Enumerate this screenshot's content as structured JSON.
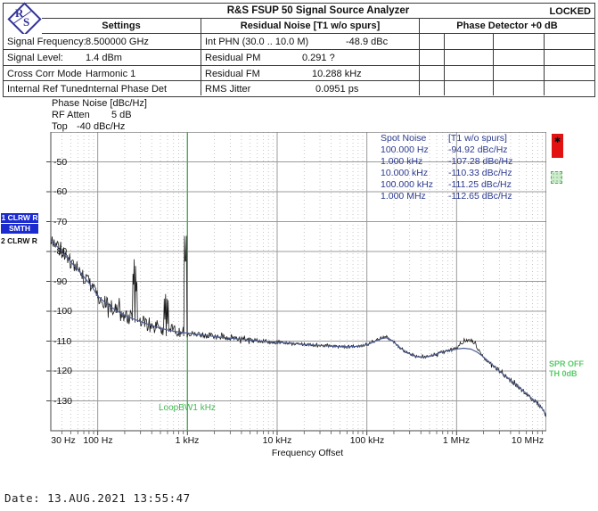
{
  "header": {
    "title": "R&S FSUP 50 Signal Source Analyzer",
    "status": "LOCKED",
    "logo_letters": {
      "r": "R",
      "s": "S"
    }
  },
  "tables": {
    "settings": {
      "header": "Settings",
      "rows": [
        {
          "label": "Signal Frequency:",
          "value": "8.500000 GHz"
        },
        {
          "label": "Signal Level:",
          "value": "1.4 dBm"
        },
        {
          "label": "Cross Corr Mode",
          "value": "Harmonic 1"
        },
        {
          "label": "Internal Ref Tuned",
          "value": "Internal Phase Det"
        }
      ]
    },
    "residual": {
      "header": "Residual Noise [T1 w/o spurs]",
      "rows": [
        {
          "label": "Int PHN (30.0 .. 10.0 M)",
          "value": "-48.9 dBc"
        },
        {
          "label": "Residual PM",
          "value": "0.291 ?"
        },
        {
          "label": "Residual FM",
          "value": "10.288 kHz"
        },
        {
          "label": "RMS Jitter",
          "value": "0.0951 ps"
        }
      ]
    },
    "phase_detector": {
      "header": "Phase Detector +0 dB",
      "rows": 4,
      "cols": 4
    }
  },
  "info": {
    "heading": "Phase Noise [dBc/Hz]",
    "atten_label": "RF Atten",
    "atten_value": "5 dB",
    "top_label": "Top",
    "top_value": "-40 dBc/Hz"
  },
  "trace_legend": {
    "badge1": "1 CLRW R",
    "badge2": "SMTH 20%",
    "badge3": "2 CLRW R"
  },
  "side_labels": {
    "spur": "SPR OFF",
    "threshold": "TH 0dB",
    "marker1": "✱"
  },
  "footer": {
    "date": "Date: 13.AUG.2021  13:55:47"
  },
  "chart_data": {
    "type": "line",
    "title": "Phase Noise [dBc/Hz]",
    "xlabel": "Frequency Offset",
    "ylabel": "Phase Noise [dBc/Hz]",
    "x_axis": {
      "scale": "log",
      "min_hz": 30,
      "max_hz": 10000000,
      "tick_hz": [
        30,
        100,
        1000,
        10000,
        100000,
        1000000,
        10000000
      ],
      "tick_labels": [
        "30 Hz",
        "100 Hz",
        "1 kHz",
        "10 kHz",
        "100 kHz",
        "1 MHz",
        "10 MHz"
      ]
    },
    "y_axis": {
      "top_db": -40,
      "bottom_db": -140,
      "tick_db": [
        -50,
        -60,
        -70,
        -80,
        -90,
        -100,
        -110,
        -120,
        -130
      ],
      "tick_labels": [
        "-50",
        "-60",
        "-70",
        "-80",
        "-90",
        "-100",
        "-110",
        "-120",
        "-130"
      ]
    },
    "annotations": {
      "loop_bw": {
        "f_hz": 1000,
        "label": "LoopBW1 kHz",
        "color": "#3cb24c"
      }
    },
    "spot_noise": {
      "rows": [
        [
          "Spot Noise",
          "[T1 w/o spurs]"
        ],
        [
          "100.000 Hz",
          "-94.92 dBc/Hz"
        ],
        [
          "1.000 kHz",
          "-107.28 dBc/Hz"
        ],
        [
          "10.000 kHz",
          "-110.33 dBc/Hz"
        ],
        [
          "100.000 kHz",
          "-111.25 dBc/Hz"
        ],
        [
          "1.000 MHz",
          "-112.65 dBc/Hz"
        ]
      ]
    },
    "series": [
      {
        "name": "Trace 1 CLRW",
        "color": "#1a1a1a",
        "noisy": true,
        "points": [
          [
            30,
            -75.5
          ],
          [
            36,
            -78.6
          ],
          [
            43,
            -81.2
          ],
          [
            52,
            -84
          ],
          [
            62,
            -86.6
          ],
          [
            74,
            -89.3
          ],
          [
            88,
            -92.2
          ],
          [
            100,
            -94.9
          ],
          [
            115,
            -96.5
          ],
          [
            135,
            -98.2
          ],
          [
            160,
            -99.7
          ],
          [
            200,
            -101.4
          ],
          [
            250,
            -102.6
          ],
          [
            320,
            -103.8
          ],
          [
            400,
            -104.8
          ],
          [
            520,
            -105.8
          ],
          [
            650,
            -106.5
          ],
          [
            800,
            -107
          ],
          [
            1000,
            -107.3
          ],
          [
            1300,
            -107.8
          ],
          [
            1700,
            -108.2
          ],
          [
            2200,
            -108.6
          ],
          [
            3000,
            -109
          ],
          [
            4000,
            -109.4
          ],
          [
            5500,
            -109.8
          ],
          [
            7500,
            -110.1
          ],
          [
            10000,
            -110.33
          ],
          [
            14000,
            -110.7
          ],
          [
            20000,
            -111.1
          ],
          [
            28000,
            -111.4
          ],
          [
            40000,
            -111.7
          ],
          [
            55000,
            -111.9
          ],
          [
            75000,
            -111.8
          ],
          [
            100000,
            -111.25
          ],
          [
            120000,
            -110.2
          ],
          [
            145000,
            -108.9
          ],
          [
            165000,
            -108.6
          ],
          [
            190000,
            -109.8
          ],
          [
            230000,
            -112
          ],
          [
            280000,
            -113.9
          ],
          [
            350000,
            -115.1
          ],
          [
            430000,
            -115.5
          ],
          [
            520000,
            -114.9
          ],
          [
            650000,
            -113.9
          ],
          [
            800000,
            -113.1
          ],
          [
            1000000,
            -112.4
          ],
          [
            1100000,
            -111.2
          ],
          [
            1250000,
            -110
          ],
          [
            1350000,
            -109.5
          ],
          [
            1500000,
            -110
          ],
          [
            1650000,
            -111.5
          ],
          [
            1800000,
            -113.5
          ],
          [
            2000000,
            -115.3
          ],
          [
            2400000,
            -117.4
          ],
          [
            2900000,
            -119.6
          ],
          [
            3500000,
            -121.7
          ],
          [
            4300000,
            -123.9
          ],
          [
            5200000,
            -126
          ],
          [
            6300000,
            -128.1
          ],
          [
            7600000,
            -130.3
          ],
          [
            9000000,
            -132.6
          ],
          [
            10000000,
            -134.8
          ]
        ]
      },
      {
        "name": "Trace 2 CLRW SMTH 20%",
        "color": "#4f5f96",
        "noisy": false,
        "points": [
          [
            30,
            -76.3
          ],
          [
            36,
            -78.6
          ],
          [
            43,
            -81.2
          ],
          [
            52,
            -84
          ],
          [
            62,
            -86.6
          ],
          [
            74,
            -89.3
          ],
          [
            88,
            -92.2
          ],
          [
            100,
            -94.9
          ],
          [
            115,
            -96.5
          ],
          [
            135,
            -98.2
          ],
          [
            160,
            -99.7
          ],
          [
            200,
            -101.4
          ],
          [
            250,
            -102.6
          ],
          [
            320,
            -103.8
          ],
          [
            400,
            -104.8
          ],
          [
            520,
            -105.8
          ],
          [
            650,
            -106.5
          ],
          [
            800,
            -107
          ],
          [
            1000,
            -107.3
          ],
          [
            1300,
            -107.8
          ],
          [
            1700,
            -108.2
          ],
          [
            2200,
            -108.6
          ],
          [
            3000,
            -109
          ],
          [
            4000,
            -109.4
          ],
          [
            5500,
            -109.8
          ],
          [
            7500,
            -110.1
          ],
          [
            10000,
            -110.33
          ],
          [
            14000,
            -110.7
          ],
          [
            20000,
            -111.1
          ],
          [
            28000,
            -111.4
          ],
          [
            40000,
            -111.7
          ],
          [
            55000,
            -111.9
          ],
          [
            75000,
            -111.8
          ],
          [
            100000,
            -111.25
          ],
          [
            120000,
            -110.2
          ],
          [
            145000,
            -109.2
          ],
          [
            165000,
            -108.9
          ],
          [
            190000,
            -109.8
          ],
          [
            230000,
            -112
          ],
          [
            280000,
            -113.9
          ],
          [
            350000,
            -115.1
          ],
          [
            430000,
            -115.5
          ],
          [
            520000,
            -114.9
          ],
          [
            650000,
            -113.9
          ],
          [
            800000,
            -113.1
          ],
          [
            1000000,
            -112.65
          ],
          [
            1200000,
            -112.4
          ],
          [
            1450000,
            -112.7
          ],
          [
            1700000,
            -113.7
          ],
          [
            2000000,
            -115.3
          ],
          [
            2400000,
            -117.4
          ],
          [
            2900000,
            -119.6
          ],
          [
            3500000,
            -121.7
          ],
          [
            4300000,
            -123.9
          ],
          [
            5200000,
            -126
          ],
          [
            6300000,
            -128.1
          ],
          [
            7600000,
            -130.3
          ],
          [
            9000000,
            -132.6
          ],
          [
            10000000,
            -134.8
          ]
        ]
      }
    ],
    "spurs": [
      [
        250,
        -93.5
      ],
      [
        270,
        -96
      ],
      [
        560,
        -103.5
      ],
      [
        600,
        -104.5
      ],
      [
        950,
        -87.5
      ]
    ],
    "noise_profile": [
      [
        1000,
        2.4
      ],
      [
        3000,
        1.0
      ],
      [
        10000,
        0.7
      ],
      [
        2000000,
        0.5
      ],
      [
        10000000,
        0.75
      ]
    ]
  }
}
